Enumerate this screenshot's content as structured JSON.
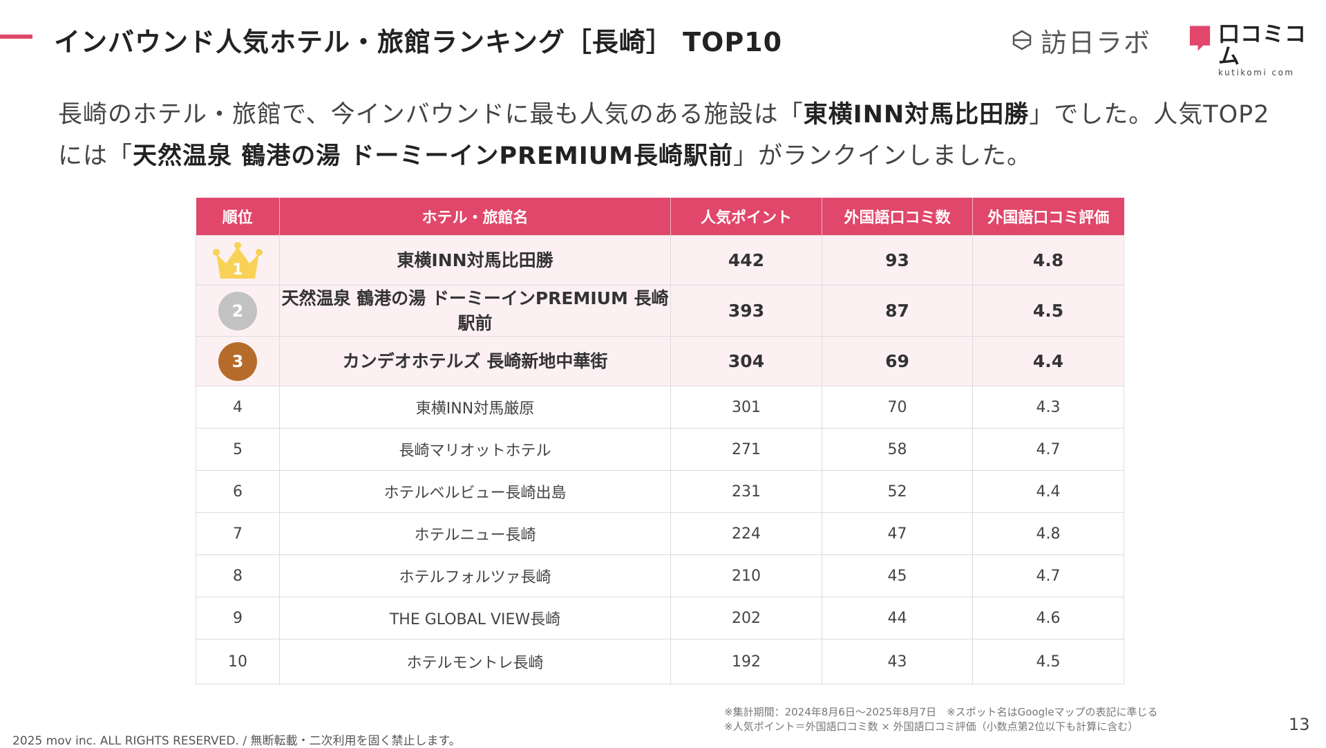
{
  "slide": {
    "title": "インバウンド人気ホテル・旅館ランキング［長崎］ TOP10",
    "page_number": "13",
    "copyright": "2025 mov inc. ALL RIGHTS RESERVED. / 無断転載・二次利用を固く禁止します。",
    "accent_color": "#e0476a"
  },
  "logos": {
    "houjin_labo": "訪日ラボ",
    "kuchikomi_main": "口コミコム",
    "kuchikomi_sub": "kutikomi com"
  },
  "lead": {
    "part1": "長崎のホテル・旅館で、今インバウンドに最も人気のある施設は「",
    "bold1": "東横INN対馬比田勝",
    "part2": "」でした。人気TOP2には「",
    "bold2": "天然温泉 鶴港の湯 ドーミーインPREMIUM長崎駅前",
    "part3": "」がランクインしました。"
  },
  "table": {
    "headers": {
      "rank": "順位",
      "name": "ホテル・旅館名",
      "points": "人気ポイント",
      "reviews": "外国語口コミ数",
      "rating": "外国語口コミ評価"
    },
    "rows": [
      {
        "rank": "1",
        "name": "東横INN対馬比田勝",
        "points": "442",
        "reviews": "93",
        "rating": "4.8"
      },
      {
        "rank": "2",
        "name": "天然温泉 鶴港の湯 ドーミーインPREMIUM 長崎駅前",
        "points": "393",
        "reviews": "87",
        "rating": "4.5"
      },
      {
        "rank": "3",
        "name": "カンデオホテルズ 長崎新地中華街",
        "points": "304",
        "reviews": "69",
        "rating": "4.4"
      },
      {
        "rank": "4",
        "name": "東横INN対馬厳原",
        "points": "301",
        "reviews": "70",
        "rating": "4.3"
      },
      {
        "rank": "5",
        "name": "長崎マリオットホテル",
        "points": "271",
        "reviews": "58",
        "rating": "4.7"
      },
      {
        "rank": "6",
        "name": "ホテルベルビュー長崎出島",
        "points": "231",
        "reviews": "52",
        "rating": "4.4"
      },
      {
        "rank": "7",
        "name": "ホテルニュー長崎",
        "points": "224",
        "reviews": "47",
        "rating": "4.8"
      },
      {
        "rank": "8",
        "name": "ホテルフォルツァ長崎",
        "points": "210",
        "reviews": "45",
        "rating": "4.7"
      },
      {
        "rank": "9",
        "name": "THE GLOBAL VIEW長崎",
        "points": "202",
        "reviews": "44",
        "rating": "4.6"
      },
      {
        "rank": "10",
        "name": "ホテルモントレ長崎",
        "points": "192",
        "reviews": "43",
        "rating": "4.5"
      }
    ]
  },
  "notes": {
    "line1": "※集計期間：2024年8月6日〜2025年8月7日　※スポット名はGoogleマップの表記に準じる",
    "line2": "※人気ポイント＝外国語口コミ数 × 外国語口コミ評価（小数点第2位以下も計算に含む）"
  }
}
